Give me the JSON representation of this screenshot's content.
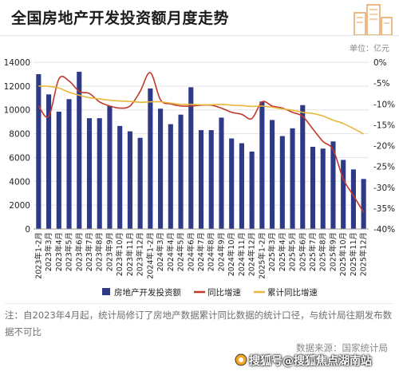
{
  "title": "全国房地产开发投资额月度走势",
  "unit": "单位：亿元",
  "footnote": "注：自2023年4月起，统计局修订了房地产数据累计同比数据的统计口径，与统计局往期发布数据不可比",
  "source": "数据来源：国家统计局",
  "watermark": "搜狐号@搜狐焦点湖南站",
  "colors": {
    "bar": "#2e3a87",
    "yoy": "#c0392b",
    "cum": "#e8b73a"
  },
  "chart_data": {
    "type": "bar",
    "categories": [
      "2023年1-2月",
      "2023年3月",
      "2023年4月",
      "2023年5月",
      "2023年6月",
      "2023年7月",
      "2023年8月",
      "2023年9月",
      "2023年10月",
      "2023年11月",
      "2023年12月",
      "2024年1-2月",
      "2024年3月",
      "2024年4月",
      "2024年5月",
      "2024年6月",
      "2024年7月",
      "2024年8月",
      "2024年9月",
      "2024年10月",
      "2024年11月",
      "2024年12月",
      "2025年1-2月",
      "2025年3月",
      "2025年4月",
      "2025年5月",
      "2025年6月",
      "2025年7月",
      "2025年8月",
      "2025年9月",
      "2025年10月",
      "2025年11月",
      "2025年12月"
    ],
    "series": [
      {
        "name": "房地产开发投资额",
        "type": "bar",
        "axis": "left",
        "values": [
          13000,
          11300,
          9850,
          10900,
          13200,
          9300,
          9300,
          10350,
          8650,
          8200,
          7650,
          11800,
          10100,
          8800,
          9600,
          11900,
          8300,
          8300,
          9350,
          7600,
          7200,
          6500,
          10700,
          9150,
          7800,
          8450,
          10400,
          6900,
          6750,
          7350,
          5800,
          5000,
          4200
        ]
      },
      {
        "name": "同比增速",
        "type": "line",
        "axis": "right",
        "values": [
          -10.5,
          -13,
          -4,
          -4.5,
          -7,
          -7.5,
          -9.5,
          -10.5,
          -11,
          -10.5,
          -7,
          -2.5,
          -9,
          -10,
          -10.5,
          -10.5,
          -10.3,
          -10.3,
          -11,
          -12,
          -12.5,
          -13.5,
          -9.5,
          -10.5,
          -11,
          -12,
          -13,
          -16,
          -19,
          -21,
          -28,
          -32,
          -36
        ]
      },
      {
        "name": "累计同比增速",
        "type": "line",
        "axis": "right",
        "values": [
          -5.7,
          -5.8,
          -6.2,
          -7.2,
          -7.9,
          -8.5,
          -8.8,
          -9.1,
          -9.3,
          -9.4,
          -9.6,
          -9.5,
          -9.5,
          -9.8,
          -10.1,
          -10.1,
          -10.2,
          -10.2,
          -10.1,
          -10.3,
          -10.4,
          -10.6,
          -10.5,
          -10.8,
          -11.2,
          -11.5,
          -12,
          -12.3,
          -12.9,
          -13.9,
          -14.7,
          -15.9,
          -17.2
        ]
      }
    ],
    "y_left": {
      "min": 0,
      "max": 14000,
      "ticks": [
        0,
        2000,
        4000,
        6000,
        8000,
        10000,
        12000,
        14000
      ]
    },
    "y_right": {
      "min": -40,
      "max": 0,
      "ticks": [
        "0%",
        "-5%",
        "-10%",
        "-15%",
        "-20%",
        "-25%",
        "-30%",
        "-35%",
        "-40%"
      ]
    },
    "legend_position": "bottom",
    "grid": true
  }
}
